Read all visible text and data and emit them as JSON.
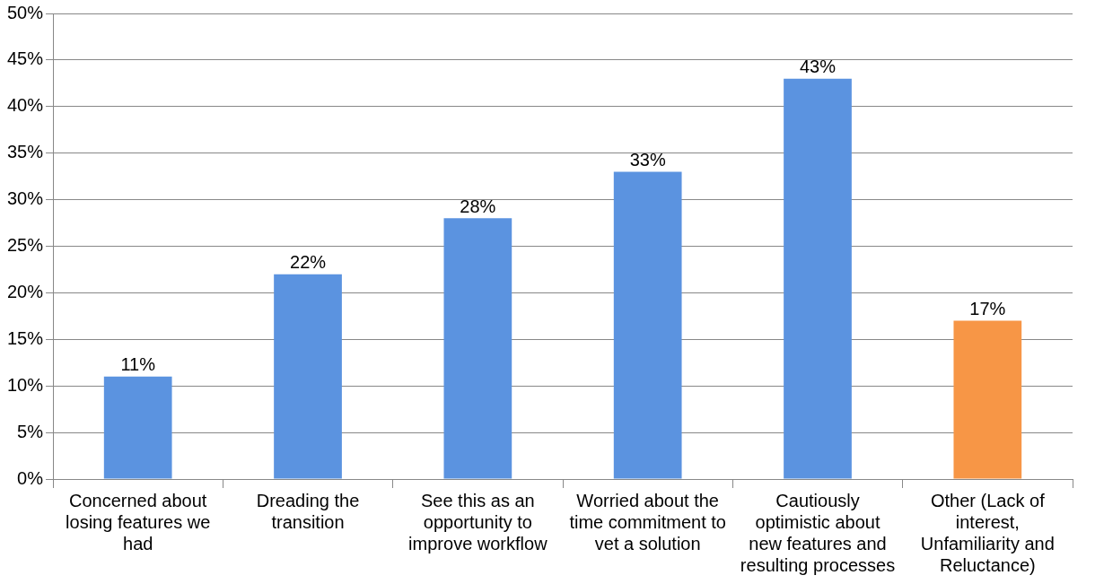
{
  "chart_data": {
    "type": "bar",
    "categories": [
      "Concerned about losing features we had",
      "Dreading the transition",
      "See this as an opportunity to improve workflow",
      "Worried about the time commitment to vet a solution",
      "Cautiously optimistic about new features and resulting processes",
      "Other (Lack of interest, Unfamiliarity and Reluctance)"
    ],
    "values": [
      11,
      22,
      28,
      33,
      43,
      17
    ],
    "colors": [
      "#5b93e0",
      "#5b93e0",
      "#5b93e0",
      "#5b93e0",
      "#5b93e0",
      "#f79646"
    ],
    "value_labels": [
      "11%",
      "22%",
      "28%",
      "33%",
      "43%",
      "17%"
    ],
    "ylim": [
      0,
      50
    ],
    "yticks": [
      {
        "value": 0,
        "label": "0%"
      },
      {
        "value": 5,
        "label": "5%"
      },
      {
        "value": 10,
        "label": "10%"
      },
      {
        "value": 15,
        "label": "15%"
      },
      {
        "value": 20,
        "label": "20%"
      },
      {
        "value": 25,
        "label": "25%"
      },
      {
        "value": 30,
        "label": "30%"
      },
      {
        "value": 35,
        "label": "35%"
      },
      {
        "value": 40,
        "label": "40%"
      },
      {
        "value": 45,
        "label": "45%"
      },
      {
        "value": 50,
        "label": "50%"
      }
    ],
    "grid": "y"
  }
}
